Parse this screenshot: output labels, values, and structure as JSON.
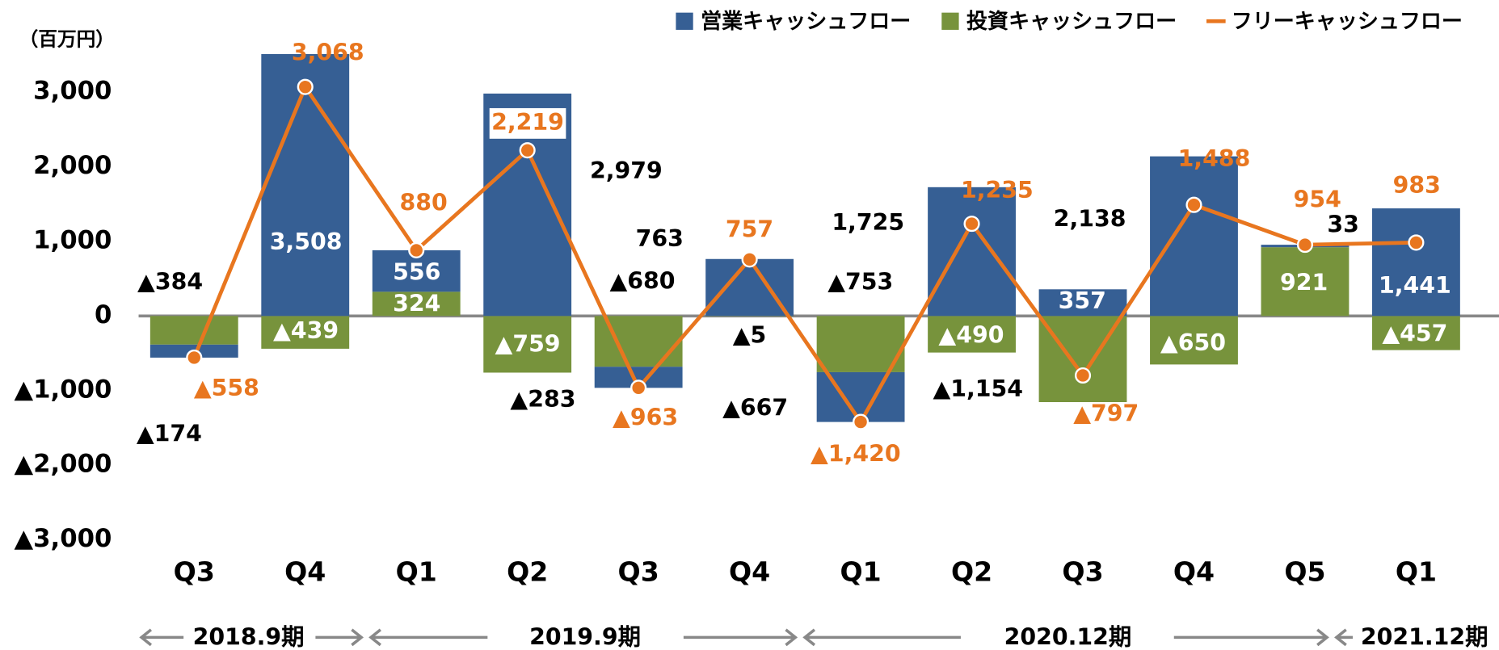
{
  "chart_data": {
    "type": "combo",
    "unit_label": "（百万円）",
    "categories": [
      "Q3",
      "Q4",
      "Q1",
      "Q2",
      "Q3",
      "Q4",
      "Q1",
      "Q2",
      "Q3",
      "Q4",
      "Q5",
      "Q1"
    ],
    "periods": [
      "2018.9期",
      "2019.9期",
      "2020.12期",
      "2021.12期"
    ],
    "ylim": [
      -3000,
      3500
    ],
    "yticks": [
      {
        "value": 3000,
        "label": "3,000"
      },
      {
        "value": 2000,
        "label": "2,000"
      },
      {
        "value": 1000,
        "label": "1,000"
      },
      0,
      {
        "value": -1000,
        "label": "▲1,000"
      },
      {
        "value": -2000,
        "label": "▲2,000"
      },
      {
        "value": -3000,
        "label": "▲3,000"
      }
    ],
    "series": [
      {
        "name": "営業キャッシュフロー",
        "type": "bar",
        "color": "#365f94",
        "values": [
          -174,
          3508,
          556,
          2979,
          -283,
          763,
          -667,
          1725,
          357,
          2138,
          33,
          1441
        ],
        "value_labels": [
          "▲174",
          "3,508",
          "556",
          "2,979",
          "▲283",
          "763",
          "▲667",
          "1,725",
          "357",
          "2,138",
          "33",
          "1,441"
        ]
      },
      {
        "name": "投資キャッシュフロー",
        "type": "bar",
        "color": "#77933c",
        "values": [
          -384,
          -439,
          324,
          -759,
          -680,
          -5,
          -753,
          -490,
          -1154,
          -650,
          921,
          -457
        ],
        "value_labels": [
          "▲384",
          "▲439",
          "324",
          "▲759",
          "▲680",
          "▲5",
          "▲753",
          "▲490",
          "▲1,154",
          "▲650",
          "921",
          "▲457"
        ]
      },
      {
        "name": "フリーキャッシュフロー",
        "type": "line",
        "color": "#e8761f",
        "values": [
          -558,
          3068,
          880,
          2219,
          -963,
          757,
          -1420,
          1235,
          -797,
          1488,
          954,
          983
        ],
        "value_labels": [
          "▲558",
          "3,068",
          "880",
          "2,219",
          "▲963",
          "757",
          "▲1,420",
          "1,235",
          "▲797",
          "1,488",
          "954",
          "983"
        ]
      }
    ]
  }
}
